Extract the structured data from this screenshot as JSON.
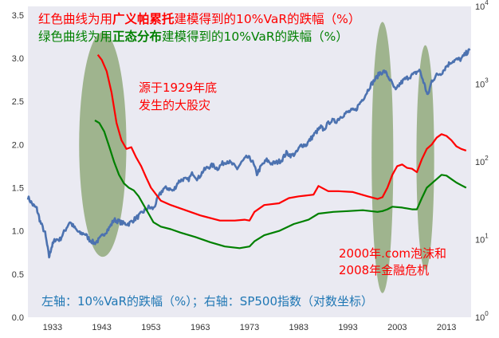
{
  "colors": {
    "background": "#ffffff",
    "plot_background": "#eaeaf2",
    "pareto": "#ff0000",
    "normal": "#008000",
    "sp500": "#4c72b0",
    "highlight": "#8fa878",
    "note": "#1f77b4",
    "tick_text": "#333333"
  },
  "annotations": {
    "title_red": {
      "pre": "红色曲线为用",
      "bold": "广义帕累托",
      "post": "建模得到的10%VaR的跌幅（%）"
    },
    "title_green": {
      "pre": "绿色曲线为用",
      "bold": "正态分布",
      "post": "建模得到的10%VaR的跌幅（%）"
    },
    "depression": [
      "源于1929年底",
      "发生的大股灾"
    ],
    "crises": [
      "2000年.com泡沫和",
      "2008年金融危机"
    ],
    "axes_note": "左轴：10%VaR的跌幅（%）；右轴：SP500指数（对数坐标）"
  },
  "chart_data": {
    "type": "line",
    "x_range": [
      1928,
      2018
    ],
    "x_ticks": [
      "1933",
      "1943",
      "1953",
      "1963",
      "1973",
      "1983",
      "1993",
      "2003",
      "2013"
    ],
    "left_axis": {
      "ylim": [
        0.0,
        3.6
      ],
      "ticks": [
        "0.0",
        "0.5",
        "1.0",
        "1.5",
        "2.0",
        "2.5",
        "3.0",
        "3.5"
      ]
    },
    "right_axis": {
      "scale": "log",
      "ylim": [
        1,
        10000
      ],
      "ticks": [
        {
          "base": "10",
          "exp": "0"
        },
        {
          "base": "10",
          "exp": "1"
        },
        {
          "base": "10",
          "exp": "2"
        },
        {
          "base": "10",
          "exp": "3"
        },
        {
          "base": "10",
          "exp": "4"
        }
      ]
    },
    "grid": false,
    "series": [
      {
        "key": "pareto",
        "axis": "left",
        "points": [
          [
            1942.2,
            3.04
          ],
          [
            1943,
            2.98
          ],
          [
            1944,
            2.85
          ],
          [
            1945,
            2.6
          ],
          [
            1946,
            2.25
          ],
          [
            1947,
            2.05
          ],
          [
            1948,
            1.95
          ],
          [
            1949,
            1.97
          ],
          [
            1950,
            1.85
          ],
          [
            1951,
            1.75
          ],
          [
            1952,
            1.62
          ],
          [
            1953,
            1.5
          ],
          [
            1955,
            1.35
          ],
          [
            1957,
            1.3
          ],
          [
            1960,
            1.24
          ],
          [
            1963,
            1.18
          ],
          [
            1967,
            1.12
          ],
          [
            1970,
            1.12
          ],
          [
            1972,
            1.13
          ],
          [
            1973,
            1.12
          ],
          [
            1974,
            1.22
          ],
          [
            1976,
            1.3
          ],
          [
            1979,
            1.32
          ],
          [
            1981,
            1.38
          ],
          [
            1983,
            1.4
          ],
          [
            1986,
            1.42
          ],
          [
            1987,
            1.52
          ],
          [
            1989,
            1.46
          ],
          [
            1991,
            1.46
          ],
          [
            1994,
            1.45
          ],
          [
            1997,
            1.4
          ],
          [
            1999,
            1.37
          ],
          [
            2000,
            1.39
          ],
          [
            2001,
            1.5
          ],
          [
            2002,
            1.65
          ],
          [
            2003,
            1.75
          ],
          [
            2004,
            1.77
          ],
          [
            2005,
            1.73
          ],
          [
            2006,
            1.72
          ],
          [
            2007,
            1.68
          ],
          [
            2008,
            1.83
          ],
          [
            2009,
            1.95
          ],
          [
            2010,
            2.0
          ],
          [
            2011,
            2.08
          ],
          [
            2012,
            2.12
          ],
          [
            2013,
            2.1
          ],
          [
            2014,
            2.05
          ],
          [
            2015,
            1.98
          ],
          [
            2016,
            1.95
          ],
          [
            2017,
            1.93
          ]
        ]
      },
      {
        "key": "normal",
        "axis": "left",
        "points": [
          [
            1941.6,
            2.28
          ],
          [
            1942.5,
            2.25
          ],
          [
            1943.5,
            2.15
          ],
          [
            1944.5,
            1.98
          ],
          [
            1945.5,
            1.8
          ],
          [
            1946.5,
            1.65
          ],
          [
            1947.5,
            1.55
          ],
          [
            1948.5,
            1.5
          ],
          [
            1949.5,
            1.47
          ],
          [
            1950.5,
            1.4
          ],
          [
            1951.5,
            1.3
          ],
          [
            1952.5,
            1.2
          ],
          [
            1953.5,
            1.1
          ],
          [
            1955,
            1.05
          ],
          [
            1957,
            1.02
          ],
          [
            1959,
            0.98
          ],
          [
            1962,
            0.93
          ],
          [
            1965,
            0.87
          ],
          [
            1968,
            0.82
          ],
          [
            1971,
            0.8
          ],
          [
            1973,
            0.82
          ],
          [
            1974,
            0.88
          ],
          [
            1976,
            0.95
          ],
          [
            1979,
            1.0
          ],
          [
            1982,
            1.08
          ],
          [
            1985,
            1.13
          ],
          [
            1987,
            1.2
          ],
          [
            1990,
            1.22
          ],
          [
            1993,
            1.23
          ],
          [
            1996,
            1.24
          ],
          [
            1999,
            1.22
          ],
          [
            2000,
            1.23
          ],
          [
            2001,
            1.25
          ],
          [
            2002,
            1.28
          ],
          [
            2004,
            1.27
          ],
          [
            2006,
            1.25
          ],
          [
            2007,
            1.25
          ],
          [
            2008,
            1.38
          ],
          [
            2009,
            1.5
          ],
          [
            2010,
            1.55
          ],
          [
            2011,
            1.6
          ],
          [
            2012,
            1.65
          ],
          [
            2013,
            1.64
          ],
          [
            2014,
            1.6
          ],
          [
            2015,
            1.56
          ],
          [
            2016,
            1.53
          ],
          [
            2017,
            1.5
          ]
        ]
      },
      {
        "key": "sp500",
        "axis": "right",
        "points": [
          [
            1928,
            35
          ],
          [
            1929,
            28
          ],
          [
            1929.8,
            25
          ],
          [
            1930.5,
            17
          ],
          [
            1931.5,
            12
          ],
          [
            1932.3,
            6
          ],
          [
            1932.8,
            8
          ],
          [
            1933.5,
            10
          ],
          [
            1934.5,
            10
          ],
          [
            1935.5,
            13
          ],
          [
            1936.5,
            17
          ],
          [
            1937.5,
            14
          ],
          [
            1938.5,
            12
          ],
          [
            1939.5,
            12
          ],
          [
            1940.5,
            10
          ],
          [
            1941.5,
            9
          ],
          [
            1942.5,
            10
          ],
          [
            1943.5,
            12
          ],
          [
            1944.5,
            14
          ],
          [
            1945.5,
            18
          ],
          [
            1946.5,
            17
          ],
          [
            1947.5,
            16
          ],
          [
            1948.5,
            16
          ],
          [
            1949.5,
            18
          ],
          [
            1950.5,
            20
          ],
          [
            1951.5,
            23
          ],
          [
            1952.5,
            26
          ],
          [
            1953.5,
            25
          ],
          [
            1954.5,
            35
          ],
          [
            1955.5,
            45
          ],
          [
            1956.5,
            46
          ],
          [
            1957.5,
            42
          ],
          [
            1958.5,
            55
          ],
          [
            1959.5,
            60
          ],
          [
            1960.5,
            58
          ],
          [
            1961.5,
            72
          ],
          [
            1962.5,
            60
          ],
          [
            1963.5,
            75
          ],
          [
            1964.5,
            85
          ],
          [
            1965.5,
            90
          ],
          [
            1966.5,
            82
          ],
          [
            1967.5,
            95
          ],
          [
            1968.5,
            103
          ],
          [
            1969.5,
            93
          ],
          [
            1970.5,
            82
          ],
          [
            1971.5,
            100
          ],
          [
            1972.5,
            115
          ],
          [
            1973.5,
            105
          ],
          [
            1974.5,
            70
          ],
          [
            1975.5,
            90
          ],
          [
            1976.5,
            105
          ],
          [
            1977.5,
            95
          ],
          [
            1978.5,
            98
          ],
          [
            1979.5,
            105
          ],
          [
            1980.5,
            130
          ],
          [
            1981.5,
            120
          ],
          [
            1982.5,
            130
          ],
          [
            1983.5,
            165
          ],
          [
            1984.5,
            165
          ],
          [
            1985.5,
            200
          ],
          [
            1986.5,
            240
          ],
          [
            1987.5,
            280
          ],
          [
            1988,
            260
          ],
          [
            1989.5,
            340
          ],
          [
            1990.5,
            330
          ],
          [
            1991.5,
            380
          ],
          [
            1992.5,
            420
          ],
          [
            1993.5,
            450
          ],
          [
            1994.5,
            460
          ],
          [
            1995.5,
            580
          ],
          [
            1996.5,
            720
          ],
          [
            1997.5,
            950
          ],
          [
            1998.5,
            1150
          ],
          [
            1999.5,
            1400
          ],
          [
            2000.5,
            1450
          ],
          [
            2001.5,
            1150
          ],
          [
            2002.7,
            820
          ],
          [
            2003.5,
            1000
          ],
          [
            2004.5,
            1150
          ],
          [
            2005.5,
            1250
          ],
          [
            2006.5,
            1350
          ],
          [
            2007.5,
            1520
          ],
          [
            2008.5,
            1000
          ],
          [
            2009.2,
            700
          ],
          [
            2010,
            1100
          ],
          [
            2011,
            1300
          ],
          [
            2012,
            1400
          ],
          [
            2013,
            1700
          ],
          [
            2014,
            1950
          ],
          [
            2015,
            2050
          ],
          [
            2016,
            2100
          ],
          [
            2017,
            2500
          ],
          [
            2017.7,
            2700
          ]
        ]
      }
    ],
    "highlights": [
      {
        "cx": 1943.2,
        "cy": 2.0,
        "rx_years": 4.8,
        "ry_units": 1.3
      },
      {
        "cx": 2000.0,
        "cy": 1.85,
        "rx_years": 2.2,
        "ry_units": 1.57
      },
      {
        "cx": 2008.7,
        "cy": 1.85,
        "rx_years": 1.8,
        "ry_units": 1.3
      }
    ]
  }
}
